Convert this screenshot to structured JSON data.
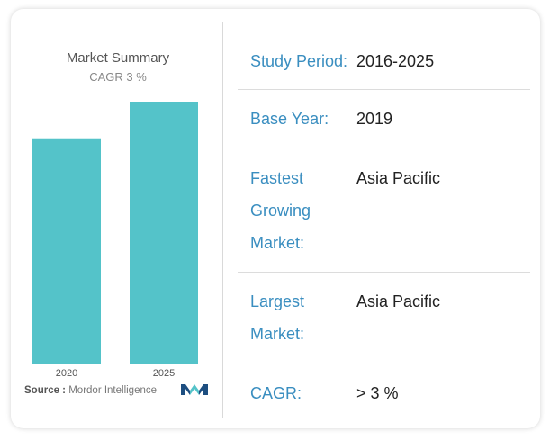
{
  "chart_data": {
    "type": "bar",
    "title": "Market Summary",
    "subtitle": "CAGR 3 %",
    "categories": [
      "2020",
      "2025"
    ],
    "values": [
      0.86,
      1.0
    ],
    "ylim": [
      0,
      1.0
    ],
    "color": "#54c3c9",
    "grid": false,
    "source_label": "Source :",
    "source_name": "Mordor Intelligence"
  },
  "summary": {
    "study_period": {
      "label": "Study Period:",
      "value": "2016-2025"
    },
    "base_year": {
      "label": "Base Year:",
      "value": "2019"
    },
    "fastest_growing": {
      "label": "Fastest Growing Market:",
      "value": "Asia Pacific"
    },
    "largest_market": {
      "label": "Largest Market:",
      "value": "Asia Pacific"
    },
    "cagr": {
      "label": "CAGR:",
      "value": "> 3 %"
    }
  },
  "colors": {
    "label": "#3a8ec0",
    "bar": "#54c3c9",
    "logo_dark": "#1d4e80",
    "logo_teal": "#54c3c9"
  }
}
